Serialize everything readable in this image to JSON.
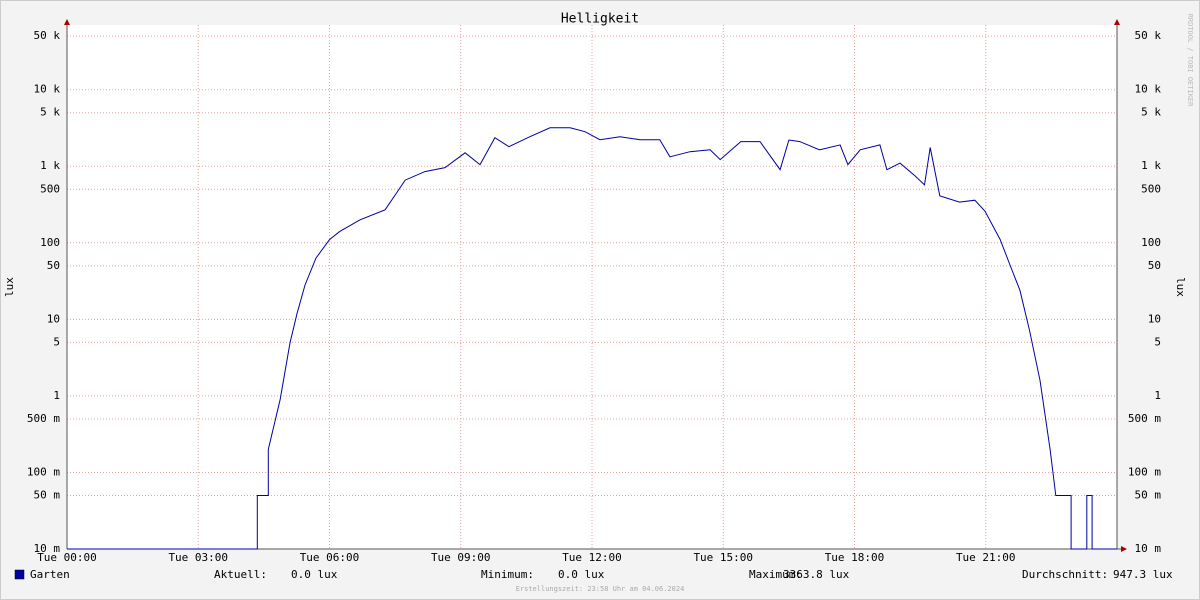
{
  "chart_data": {
    "type": "line",
    "title": "Helligkeit",
    "y_label": "lux",
    "log_y": true,
    "grid": true,
    "x": [
      0,
      4.35,
      4.35,
      4.6,
      4.6,
      4.87,
      5.1,
      5.26,
      5.44,
      5.69,
      6.0,
      6.23,
      6.7,
      7.27,
      7.5,
      7.73,
      8.18,
      8.64,
      9.1,
      9.44,
      9.78,
      10.1,
      10.58,
      11.04,
      11.5,
      11.84,
      12.18,
      12.64,
      13.1,
      13.55,
      13.78,
      14.24,
      14.7,
      14.93,
      15.4,
      15.84,
      16.3,
      16.5,
      16.75,
      17.2,
      17.67,
      17.85,
      18.13,
      18.58,
      18.74,
      19.04,
      19.38,
      19.6,
      19.73,
      19.95,
      20.4,
      20.75,
      20.98,
      21.33,
      21.55,
      21.78,
      22.0,
      22.24,
      22.47,
      22.6,
      22.95,
      22.95,
      23.31,
      23.31,
      23.43,
      23.43,
      24
    ],
    "series": [
      {
        "name": "Garten",
        "color": "#0000a0",
        "values": [
          0.01,
          0.01,
          0.05,
          0.05,
          0.2,
          0.89,
          5,
          12,
          28,
          63,
          110,
          140,
          200,
          270,
          420,
          660,
          850,
          960,
          1500,
          1050,
          2360,
          1800,
          2430,
          3180,
          3180,
          2830,
          2220,
          2430,
          2220,
          2220,
          1330,
          1550,
          1640,
          1220,
          2100,
          2100,
          900,
          2200,
          2100,
          1640,
          1900,
          1050,
          1640,
          1900,
          900,
          1100,
          750,
          570,
          1760,
          410,
          340,
          360,
          260,
          110,
          52,
          24,
          7.2,
          1.6,
          0.2,
          0.05,
          0.05,
          0.01,
          0.01,
          0.05,
          0.05,
          0.01,
          0.01
        ]
      }
    ],
    "xlim": [
      0,
      24
    ],
    "xticks": [
      {
        "value": 0,
        "label": "Tue 00:00"
      },
      {
        "value": 3,
        "label": "Tue 03:00"
      },
      {
        "value": 6,
        "label": "Tue 06:00"
      },
      {
        "value": 9,
        "label": "Tue 09:00"
      },
      {
        "value": 12,
        "label": "Tue 12:00"
      },
      {
        "value": 15,
        "label": "Tue 15:00"
      },
      {
        "value": 18,
        "label": "Tue 18:00"
      },
      {
        "value": 21,
        "label": "Tue 21:00"
      }
    ],
    "ylim": [
      0.01,
      70000
    ],
    "yticks": [
      {
        "value": 50000,
        "label": "50 k"
      },
      {
        "value": 10000,
        "label": "10 k"
      },
      {
        "value": 5000,
        "label": "5 k"
      },
      {
        "value": 1000,
        "label": "1 k"
      },
      500,
      100,
      50,
      10,
      5,
      1,
      {
        "value": 0.5,
        "label": "500 m"
      },
      {
        "value": 0.1,
        "label": "100 m"
      },
      {
        "value": 0.05,
        "label": "50 m"
      },
      {
        "value": 0.01,
        "label": "10 m"
      }
    ],
    "stats": [
      {
        "label": "Aktuell:",
        "value": "0.0 lux"
      },
      {
        "label": "Minimum:",
        "value": "0.0 lux"
      },
      {
        "label": "Maximum:",
        "value": "3363.8 lux"
      },
      {
        "label": "Durchschnitt:",
        "value": "947.3 lux"
      }
    ],
    "footer": "Erstellungszeit: 23:58 Uhr am 04.06.2024",
    "watermark": "RRDTOOL / TOBI OETIKER"
  }
}
